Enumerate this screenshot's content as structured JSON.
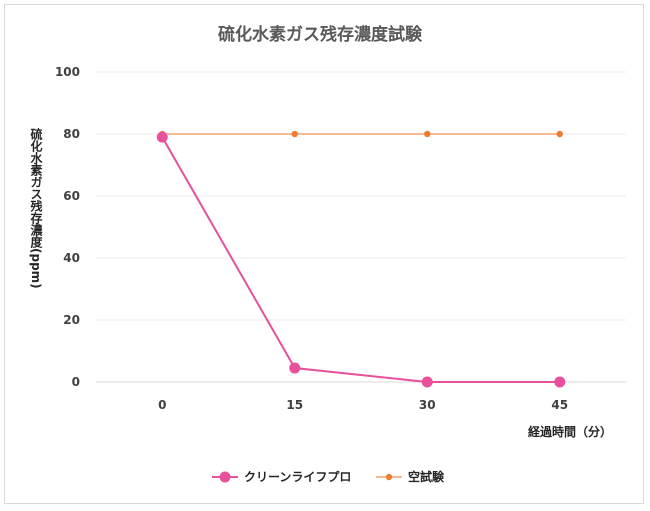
{
  "chart_data": {
    "type": "line",
    "title": "硫化水素ガス残存濃度試験",
    "xlabel": "経過時間（分）",
    "ylabel": "硫化水素ガス残存濃度(ppm)",
    "x": [
      0,
      15,
      30,
      45
    ],
    "x_tick_labels": [
      "0",
      "15",
      "30",
      "45"
    ],
    "ylim": [
      0,
      100
    ],
    "y_ticks": [
      0,
      20,
      40,
      60,
      80,
      100
    ],
    "grid": true,
    "legend_position": "bottom",
    "series": [
      {
        "name": "クリーンライフプロ",
        "values": [
          79,
          4.5,
          0,
          0
        ],
        "color": "#e8509b"
      },
      {
        "name": "空試験",
        "values": [
          80,
          80,
          80,
          80
        ],
        "color": "#f4a46e",
        "marker_color": "#ed7d31"
      }
    ]
  }
}
